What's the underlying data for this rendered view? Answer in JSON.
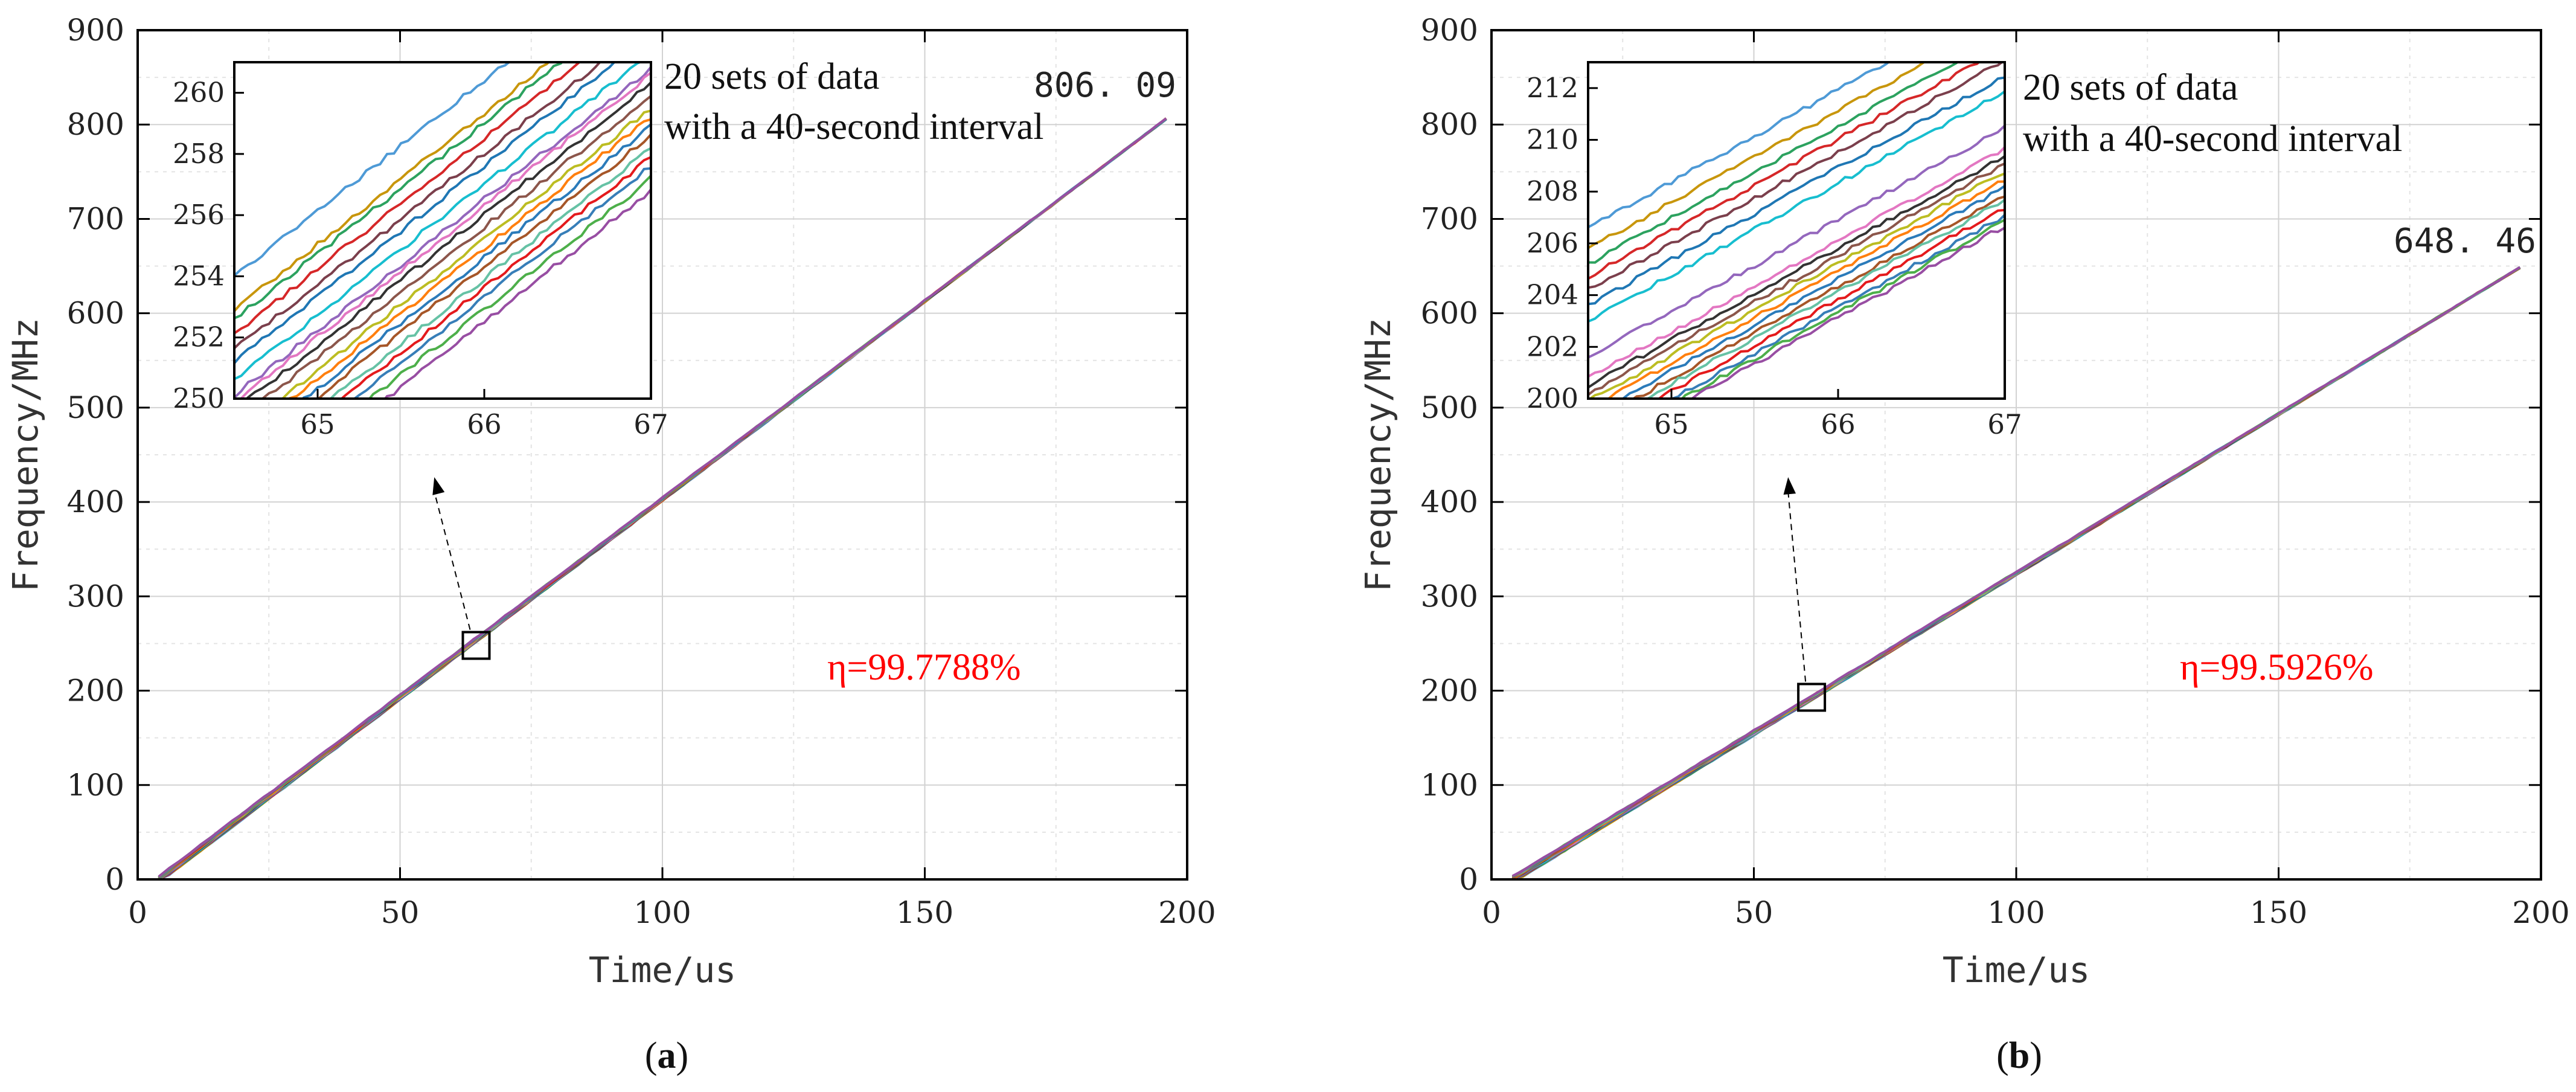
{
  "palette": [
    "#4e9ad6",
    "#c8960c",
    "#2ca25f",
    "#d62728",
    "#7b3f4c",
    "#1f77b4",
    "#17becf",
    "#9467bd",
    "#e377c2",
    "#333333",
    "#8c564b",
    "#bcbd22",
    "#ff7f0e",
    "#2b7bba",
    "#a65628",
    "#66c2a5",
    "#e41a1c",
    "#377eb8",
    "#4daf4a",
    "#984ea3"
  ],
  "chart_data": [
    {
      "type": "line",
      "panel": "a",
      "caption": "(a)",
      "caption_letter": "a",
      "xlabel": "Time/us",
      "ylabel": "Frequency/MHz",
      "xlim": [
        0,
        200
      ],
      "ylim": [
        0,
        900
      ],
      "xticks": [
        "0",
        "50",
        "100",
        "150",
        "200"
      ],
      "yticks": [
        "0",
        "100",
        "200",
        "300",
        "400",
        "500",
        "600",
        "700",
        "800",
        "900"
      ],
      "series_count": 20,
      "series_description": "20 sets of data",
      "start_time": 4,
      "end_time": 196,
      "end_value": 806.09,
      "end_value_label": "806. 09",
      "efficiency_label": "η=99.7788%",
      "efficiency_color": "#ff0000",
      "zoom_box_center": [
        64.5,
        248
      ],
      "annotation_lines": [
        "20 sets of data",
        "with a 40-second interval"
      ],
      "inset": {
        "xlim": [
          64.5,
          67
        ],
        "ylim": [
          250,
          261
        ],
        "xticks": [
          "65",
          "66",
          "67"
        ],
        "yticks": [
          "250",
          "252",
          "254",
          "256",
          "258",
          "260"
        ],
        "offsets_at_x64_5": [
          254.0,
          252.9,
          252.6,
          252.1,
          251.6,
          251.2,
          250.6,
          250.1,
          249.9,
          249.6,
          249.2,
          248.8,
          248.5,
          248.2,
          247.9,
          247.5,
          247.2,
          246.9,
          246.5,
          246.1
        ],
        "slope_mhz_per_us": 4.28
      }
    },
    {
      "type": "line",
      "panel": "b",
      "caption": "(b)",
      "caption_letter": "b",
      "xlabel": "Time/us",
      "ylabel": "Frequency/MHz",
      "xlim": [
        0,
        200
      ],
      "ylim": [
        0,
        900
      ],
      "xticks": [
        "0",
        "50",
        "100",
        "150",
        "200"
      ],
      "yticks": [
        "0",
        "100",
        "200",
        "300",
        "400",
        "500",
        "600",
        "700",
        "800",
        "900"
      ],
      "series_count": 20,
      "series_description": "20 sets of data",
      "start_time": 4,
      "end_time": 196,
      "end_value": 648.46,
      "end_value_label": "648. 46",
      "efficiency_label": "η=99.5926%",
      "efficiency_color": "#ff0000",
      "zoom_box_center": [
        61,
        193
      ],
      "annotation_lines": [
        "20 sets of data",
        "with a 40-second interval"
      ],
      "inset": {
        "xlim": [
          64.5,
          67
        ],
        "ylim": [
          200,
          213
        ],
        "xticks": [
          "65",
          "66",
          "67"
        ],
        "yticks": [
          "200",
          "202",
          "204",
          "206",
          "208",
          "210",
          "212"
        ],
        "offsets_at_x64_5": [
          206.6,
          205.8,
          205.2,
          204.7,
          204.2,
          203.6,
          203.0,
          201.6,
          200.8,
          200.5,
          200.2,
          199.9,
          199.6,
          199.3,
          199.0,
          198.8,
          198.5,
          198.2,
          198.0,
          197.8
        ],
        "slope_mhz_per_us": 3.55
      }
    }
  ]
}
